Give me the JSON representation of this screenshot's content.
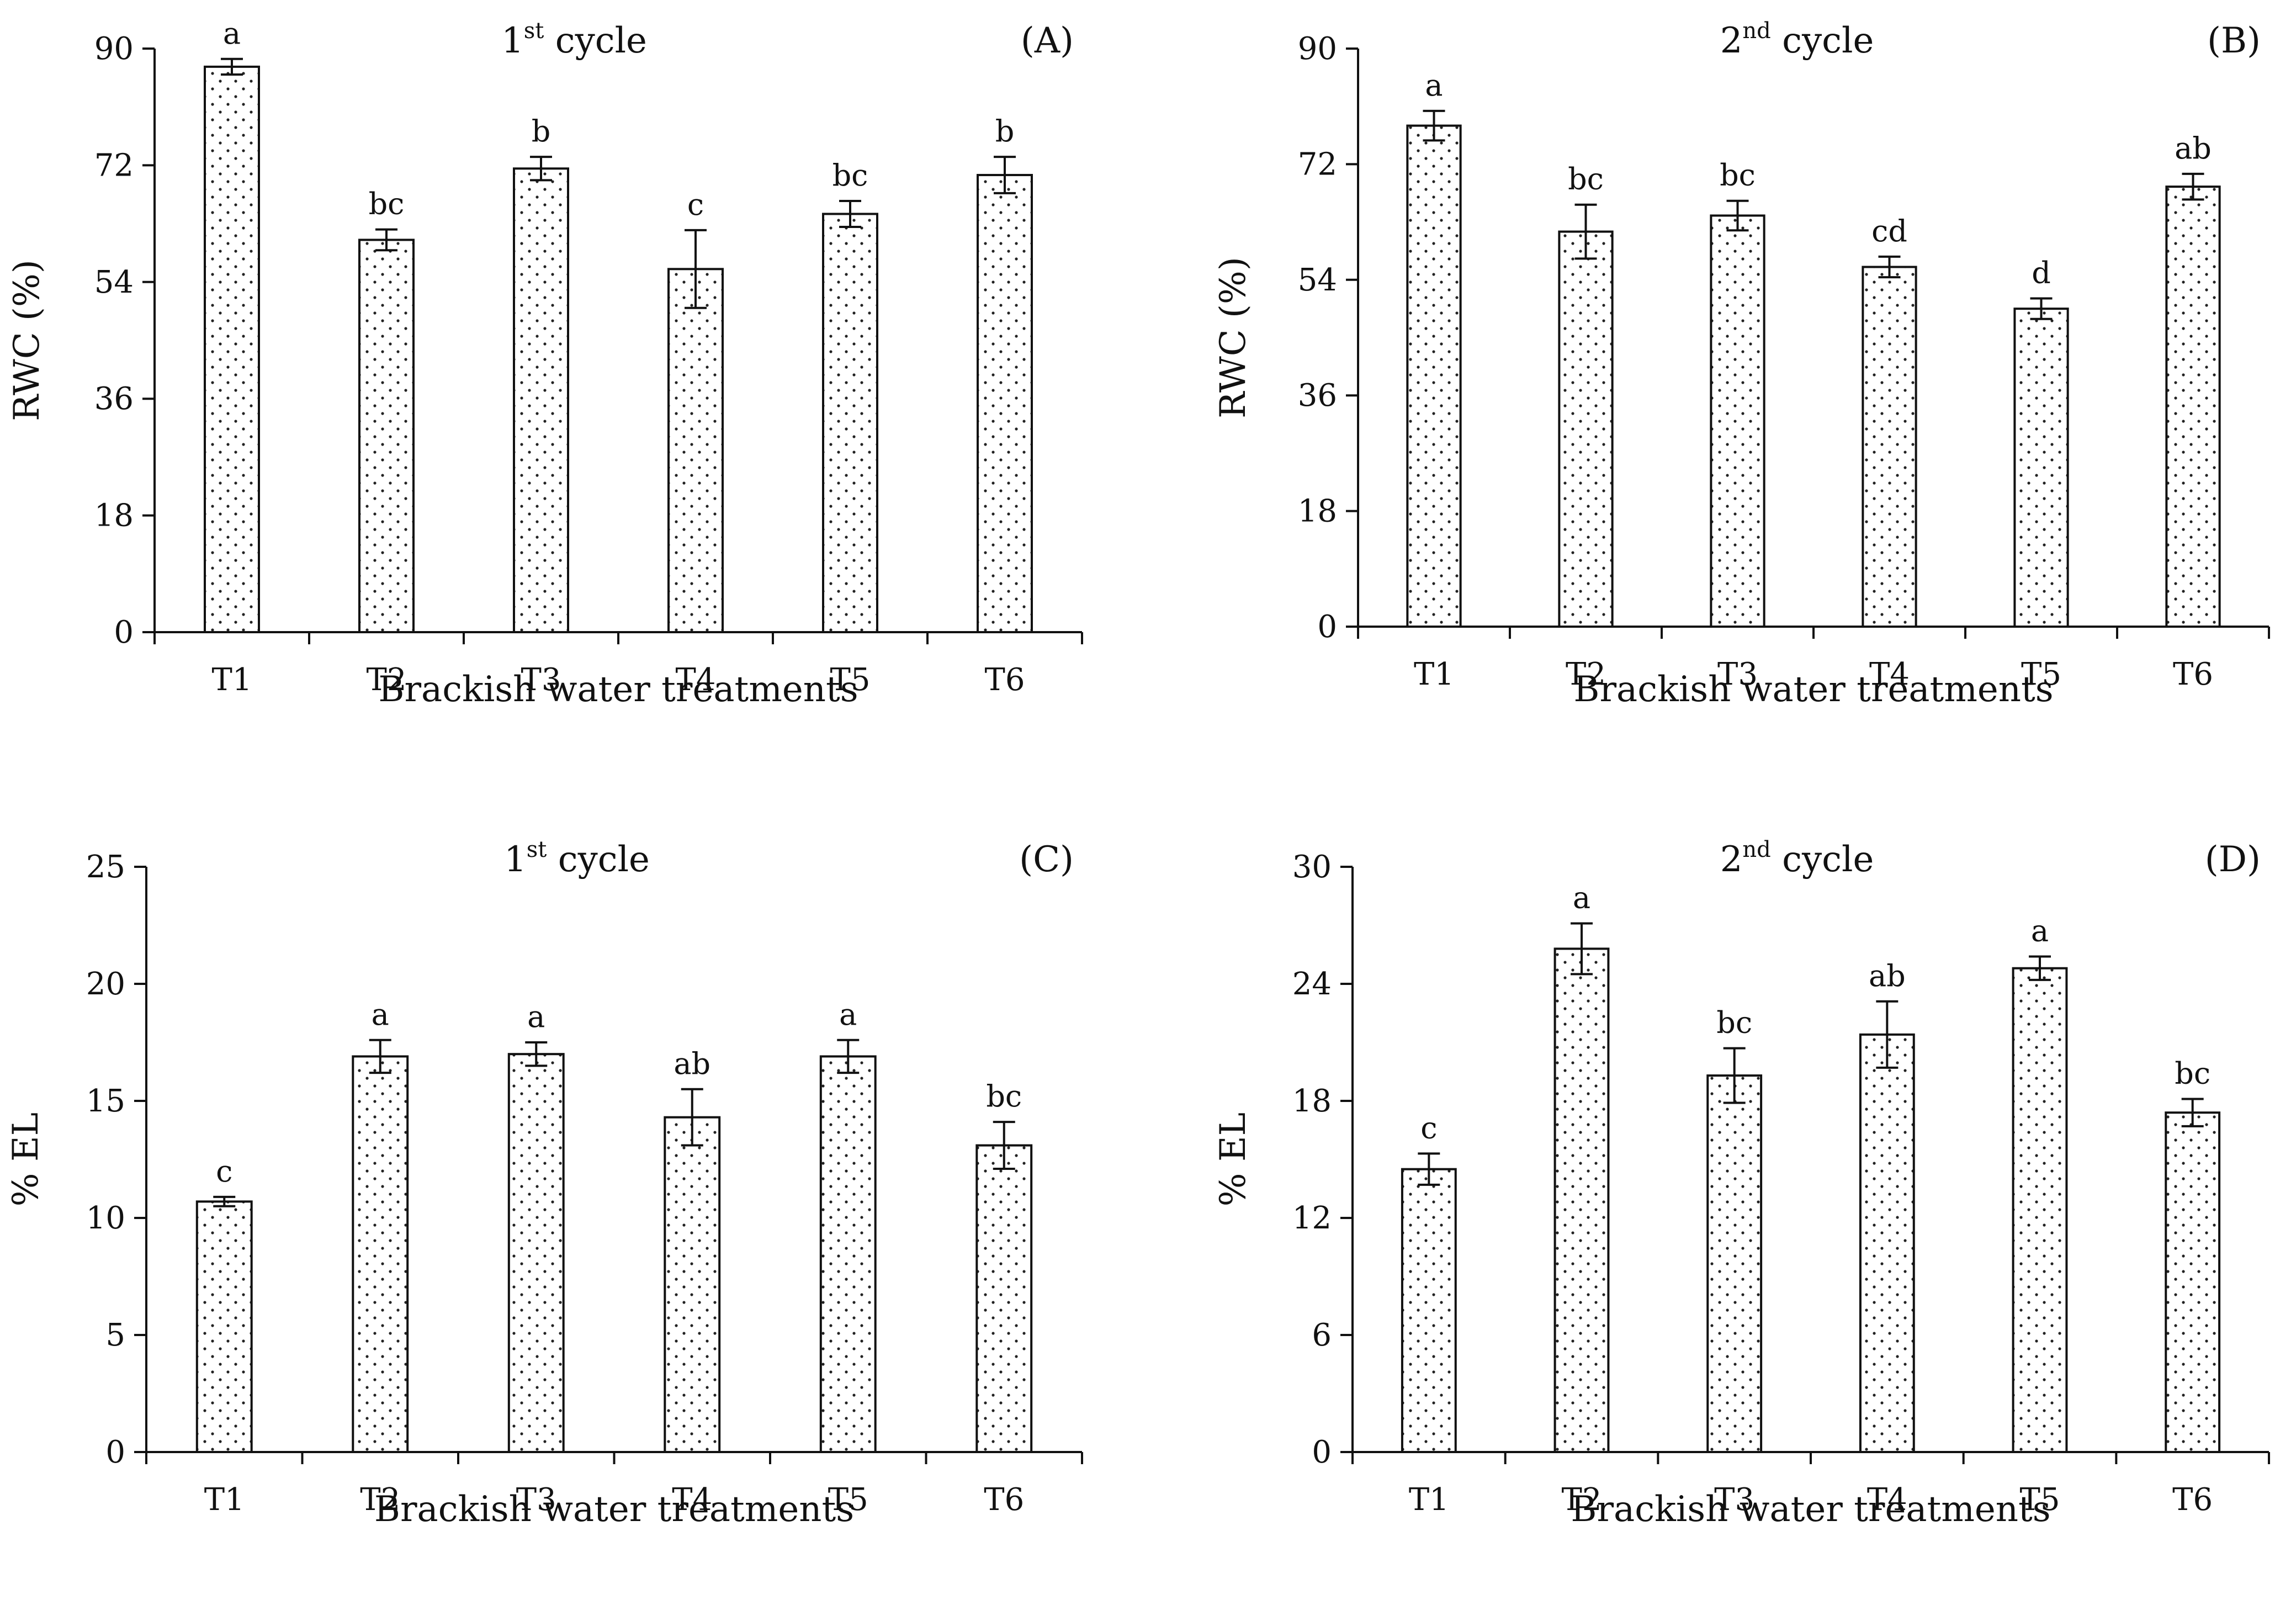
{
  "chart_data": [
    {
      "panel": "(A)",
      "type": "bar",
      "title": "1st cycle",
      "title_main": "1",
      "title_sup": "st",
      "title_rest": " cycle",
      "xlabel": "Brackish water treatments",
      "ylabel": "RWC (%)",
      "ylim": [
        0,
        90
      ],
      "yticks": [
        0,
        18,
        36,
        54,
        72,
        90
      ],
      "categories": [
        "T1",
        "T2",
        "T3",
        "T4",
        "T5",
        "T6"
      ],
      "values": [
        87.2,
        60.5,
        71.5,
        56.0,
        64.5,
        70.5
      ],
      "errors": [
        1.2,
        1.6,
        1.8,
        6.0,
        2.0,
        2.8
      ],
      "significance": [
        "a",
        "bc",
        "b",
        "c",
        "bc",
        "b"
      ]
    },
    {
      "panel": "(B)",
      "type": "bar",
      "title": "2nd cycle",
      "title_main": "2",
      "title_sup": "nd",
      "title_rest": " cycle",
      "xlabel": "Brackish water treatments",
      "ylabel": "RWC (%)",
      "ylim": [
        0,
        90
      ],
      "yticks": [
        0,
        18,
        36,
        54,
        72,
        90
      ],
      "categories": [
        "T1",
        "T2",
        "T3",
        "T4",
        "T5",
        "T6"
      ],
      "values": [
        78.0,
        61.5,
        64.0,
        56.0,
        49.5,
        68.5
      ],
      "errors": [
        2.3,
        4.2,
        2.3,
        1.6,
        1.6,
        2.0
      ],
      "significance": [
        "a",
        "bc",
        "bc",
        "cd",
        "d",
        "ab"
      ]
    },
    {
      "panel": "(C)",
      "type": "bar",
      "title": "1st cycle",
      "title_main": "1",
      "title_sup": "st",
      "title_rest": " cycle",
      "xlabel": "Brackish water treatments",
      "ylabel": "% EL",
      "ylim": [
        0,
        25
      ],
      "yticks": [
        0,
        5,
        10,
        15,
        20,
        25
      ],
      "categories": [
        "T1",
        "T2",
        "T3",
        "T4",
        "T5",
        "T6"
      ],
      "values": [
        10.7,
        16.9,
        17.0,
        14.3,
        16.9,
        13.1
      ],
      "errors": [
        0.2,
        0.7,
        0.5,
        1.2,
        0.7,
        1.0
      ],
      "significance": [
        "c",
        "a",
        "a",
        "ab",
        "a",
        "bc"
      ]
    },
    {
      "panel": "(D)",
      "type": "bar",
      "title": "2nd cycle",
      "title_main": "2",
      "title_sup": "nd",
      "title_rest": " cycle",
      "xlabel": "Brackish water treatments",
      "ylabel": "% EL",
      "ylim": [
        0,
        30
      ],
      "yticks": [
        0,
        6,
        12,
        18,
        24,
        30
      ],
      "categories": [
        "T1",
        "T2",
        "T3",
        "T4",
        "T5",
        "T6"
      ],
      "values": [
        14.5,
        25.8,
        19.3,
        21.4,
        24.8,
        17.4
      ],
      "errors": [
        0.8,
        1.3,
        1.4,
        1.7,
        0.6,
        0.7
      ],
      "significance": [
        "c",
        "a",
        "bc",
        "ab",
        "a",
        "bc"
      ]
    }
  ]
}
